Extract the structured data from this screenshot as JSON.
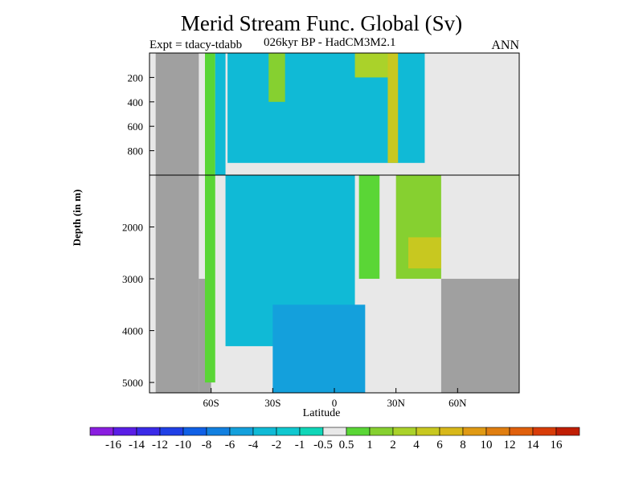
{
  "header": {
    "title": "Merid Stream Func. Global (Sv)",
    "left_subtitle": "Expt = tdacy-tdabb",
    "center_subtitle": "026kyr BP - HadCM3M2.1",
    "right_subtitle": "ANN"
  },
  "chart_data": {
    "type": "heatmap",
    "title": "Merid Stream Func. Global (Sv)",
    "xlabel": "Latitude",
    "ylabel": "Depth (in m)",
    "xlim": [
      -90,
      90
    ],
    "x_ticks": [
      {
        "value": -60,
        "label": "60S"
      },
      {
        "value": -30,
        "label": "30S"
      },
      {
        "value": 0,
        "label": "0"
      },
      {
        "value": 30,
        "label": "30N"
      },
      {
        "value": 60,
        "label": "60N"
      }
    ],
    "y_ticks_upper": [
      {
        "value": 200,
        "label": "200"
      },
      {
        "value": 400,
        "label": "400"
      },
      {
        "value": 600,
        "label": "600"
      },
      {
        "value": 800,
        "label": "800"
      }
    ],
    "y_ticks_lower": [
      {
        "value": 2000,
        "label": "2000"
      },
      {
        "value": 3000,
        "label": "3000"
      },
      {
        "value": 4000,
        "label": "4000"
      },
      {
        "value": 5000,
        "label": "5000"
      }
    ],
    "y_upper_range": [
      0,
      1000
    ],
    "y_lower_range": [
      1000,
      5200
    ],
    "colorbar": {
      "labels": [
        "-16",
        "-14",
        "-12",
        "-10",
        "-8",
        "-6",
        "-4",
        "-2",
        "-1",
        "-0.5",
        "0.5",
        "1",
        "2",
        "4",
        "6",
        "8",
        "10",
        "12",
        "14",
        "16"
      ],
      "colors": [
        "#8a1ee0",
        "#5a1ee6",
        "#3a2ae8",
        "#2040e6",
        "#1060e6",
        "#1280e0",
        "#14a0dc",
        "#10bad6",
        "#10c8d0",
        "#10d6b8",
        "#e8e8e8",
        "#5ad636",
        "#86d030",
        "#aad22a",
        "#c8c820",
        "#d8b81a",
        "#e09a14",
        "#e07e10",
        "#e0600c",
        "#d83c08",
        "#c01e04"
      ]
    },
    "land_color": "#a0a0a0",
    "no_change_color": "#e8e8e8",
    "fields": [
      {
        "lat": [
          -87,
          -66
        ],
        "depth": [
          0,
          5200
        ],
        "value": "land"
      },
      {
        "lat": [
          -66,
          -60
        ],
        "depth": [
          3000,
          5200
        ],
        "value": "land"
      },
      {
        "lat": [
          -63,
          -58
        ],
        "depth": [
          0,
          5000
        ],
        "value": 1
      },
      {
        "lat": [
          -58,
          -53
        ],
        "depth": [
          0,
          1000
        ],
        "value": -2
      },
      {
        "lat": [
          -53,
          10
        ],
        "depth": [
          1000,
          4300
        ],
        "value": -2
      },
      {
        "lat": [
          -52,
          44
        ],
        "depth": [
          0,
          900
        ],
        "value": -2
      },
      {
        "lat": [
          -30,
          15
        ],
        "depth": [
          3500,
          5200
        ],
        "value": -4
      },
      {
        "lat": [
          -32,
          -24
        ],
        "depth": [
          0,
          400
        ],
        "value": 2
      },
      {
        "lat": [
          10,
          30
        ],
        "depth": [
          0,
          200
        ],
        "value": 4
      },
      {
        "lat": [
          12,
          22
        ],
        "depth": [
          1000,
          3000
        ],
        "value": 1
      },
      {
        "lat": [
          26,
          31
        ],
        "depth": [
          0,
          900
        ],
        "value": 6
      },
      {
        "lat": [
          30,
          52
        ],
        "depth": [
          1000,
          3000
        ],
        "value": 2
      },
      {
        "lat": [
          36,
          52
        ],
        "depth": [
          2200,
          2800
        ],
        "value": 6
      },
      {
        "lat": [
          52,
          90
        ],
        "depth": [
          3000,
          5200
        ],
        "value": "land"
      }
    ]
  }
}
